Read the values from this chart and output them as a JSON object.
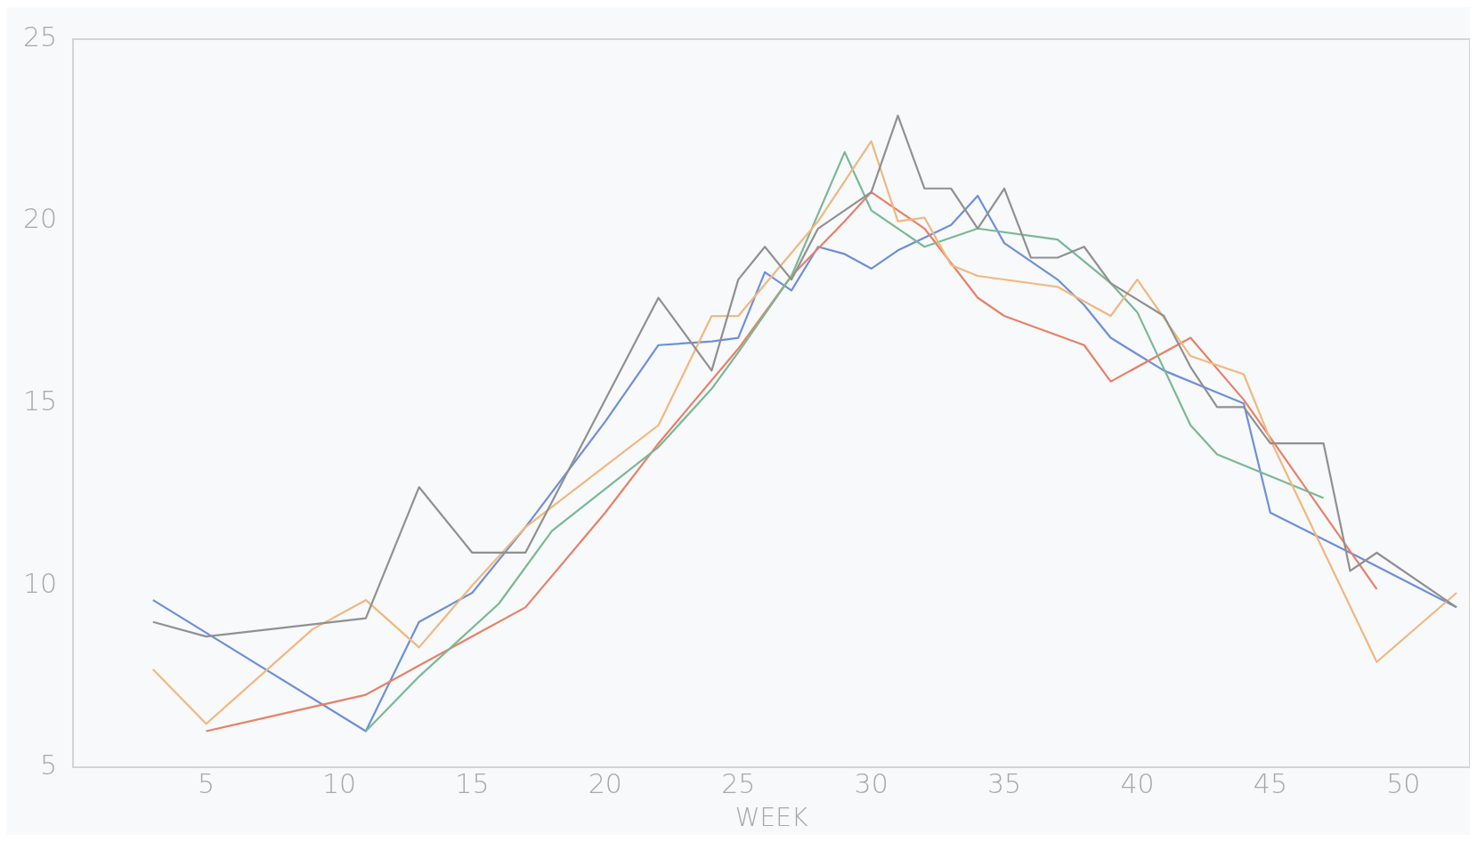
{
  "chart_data": {
    "type": "line",
    "xlabel": "WEEK",
    "xlim": [
      0,
      52.5
    ],
    "xticks": [
      5,
      10,
      15,
      20,
      25,
      30,
      35,
      40,
      45,
      50
    ],
    "ylim": [
      5,
      25
    ],
    "yticks": [
      5,
      10,
      15,
      20,
      25
    ],
    "grid": false,
    "legend": false,
    "marker": "none",
    "line_style": "solid",
    "series": [
      {
        "color": "#909090",
        "x": [
          3,
          5,
          11,
          13,
          15,
          17,
          22,
          24,
          25,
          26,
          27,
          28,
          30,
          31,
          32,
          33,
          34,
          35,
          36,
          37,
          38,
          39,
          41,
          42,
          43,
          44,
          45,
          47,
          48,
          49,
          52
        ],
        "values": [
          9.0,
          8.6,
          9.1,
          12.7,
          10.9,
          10.9,
          17.9,
          15.9,
          18.4,
          19.3,
          18.4,
          19.8,
          20.8,
          22.9,
          20.9,
          20.9,
          19.8,
          20.9,
          19.0,
          19.0,
          19.3,
          18.3,
          17.4,
          16.0,
          14.9,
          14.9,
          13.9,
          13.9,
          10.4,
          10.9,
          9.4
        ]
      },
      {
        "color": "#f0b880",
        "x": [
          3,
          5,
          9,
          11,
          13,
          15,
          17,
          22,
          24,
          25,
          28,
          30,
          31,
          32,
          33,
          34,
          37,
          39,
          40,
          42,
          44,
          45,
          49,
          52
        ],
        "values": [
          7.7,
          6.2,
          8.8,
          9.6,
          8.3,
          10.0,
          11.6,
          14.4,
          17.4,
          17.4,
          20.0,
          22.2,
          20.0,
          20.1,
          18.8,
          18.5,
          18.2,
          17.4,
          18.4,
          16.3,
          15.8,
          14.0,
          7.9,
          9.8
        ]
      },
      {
        "color": "#7bb895",
        "x": [
          11,
          13,
          16,
          18,
          22,
          24,
          25,
          27,
          29,
          30,
          32,
          34,
          37,
          39,
          40,
          42,
          43,
          47
        ],
        "values": [
          6.0,
          7.5,
          9.5,
          11.5,
          13.8,
          15.4,
          16.4,
          18.5,
          21.9,
          20.3,
          19.3,
          19.8,
          19.5,
          18.3,
          17.5,
          14.4,
          13.6,
          12.4
        ]
      },
      {
        "color": "#e8806a",
        "x": [
          5,
          11,
          13,
          15,
          17,
          20,
          22,
          25,
          27,
          29,
          30,
          32,
          34,
          35,
          38,
          39,
          42,
          44,
          49
        ],
        "values": [
          6.0,
          7.0,
          7.8,
          8.6,
          9.4,
          12.0,
          13.9,
          16.5,
          18.5,
          20.0,
          20.8,
          19.8,
          17.9,
          17.4,
          16.6,
          15.6,
          16.8,
          15.1,
          9.9
        ]
      },
      {
        "color": "#6f8fd8",
        "x": [
          3,
          11,
          13,
          15,
          17,
          20,
          22,
          24,
          25,
          26,
          27,
          28,
          29,
          30,
          31,
          33,
          34,
          35,
          37,
          38,
          39,
          41,
          43,
          44,
          45,
          48,
          52
        ],
        "values": [
          9.6,
          6.0,
          9.0,
          9.8,
          11.6,
          14.5,
          16.6,
          16.7,
          16.8,
          18.6,
          18.1,
          19.3,
          19.1,
          18.7,
          19.2,
          19.9,
          20.7,
          19.4,
          18.4,
          17.7,
          16.8,
          15.9,
          15.3,
          15.0,
          12.0,
          10.9,
          9.4
        ]
      }
    ]
  }
}
